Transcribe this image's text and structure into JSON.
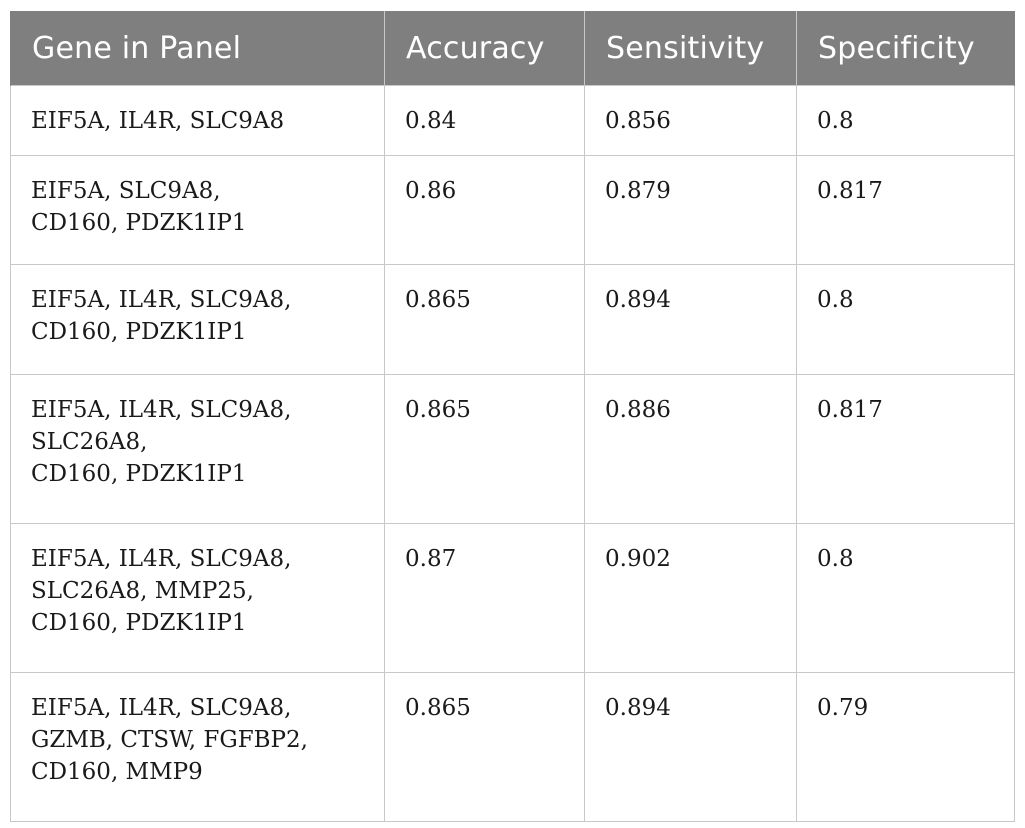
{
  "table": {
    "headers": [
      "Gene in Panel",
      "Accuracy",
      "Sensitivity",
      "Specificity"
    ],
    "rows": [
      {
        "gene_lines": [
          "EIF5A, IL4R, SLC9A8"
        ],
        "accuracy": "0.84",
        "sensitivity": "0.856",
        "specificity": "0.8"
      },
      {
        "gene_lines": [
          "EIF5A, SLC9A8,",
          "CD160, PDZK1IP1"
        ],
        "accuracy": "0.86",
        "sensitivity": "0.879",
        "specificity": "0.817"
      },
      {
        "gene_lines": [
          "EIF5A, IL4R, SLC9A8,",
          "CD160, PDZK1IP1"
        ],
        "accuracy": "0.865",
        "sensitivity": "0.894",
        "specificity": "0.8"
      },
      {
        "gene_lines": [
          "EIF5A, IL4R, SLC9A8,",
          "SLC26A8,",
          "CD160, PDZK1IP1"
        ],
        "accuracy": "0.865",
        "sensitivity": "0.886",
        "specificity": "0.817"
      },
      {
        "gene_lines": [
          "EIF5A, IL4R, SLC9A8,",
          "SLC26A8, MMP25,",
          "CD160, PDZK1IP1"
        ],
        "accuracy": "0.87",
        "sensitivity": "0.902",
        "specificity": "0.8"
      },
      {
        "gene_lines": [
          "EIF5A, IL4R, SLC9A8,",
          "GZMB, CTSW, FGFBP2,",
          "CD160, MMP9"
        ],
        "accuracy": "0.865",
        "sensitivity": "0.894",
        "specificity": "0.79"
      }
    ]
  },
  "colors": {
    "header_background": "#7f7f7f",
    "header_text": "#ffffff",
    "grid_lines": "#c8c8c8",
    "body_text": "#1a1a1a"
  }
}
